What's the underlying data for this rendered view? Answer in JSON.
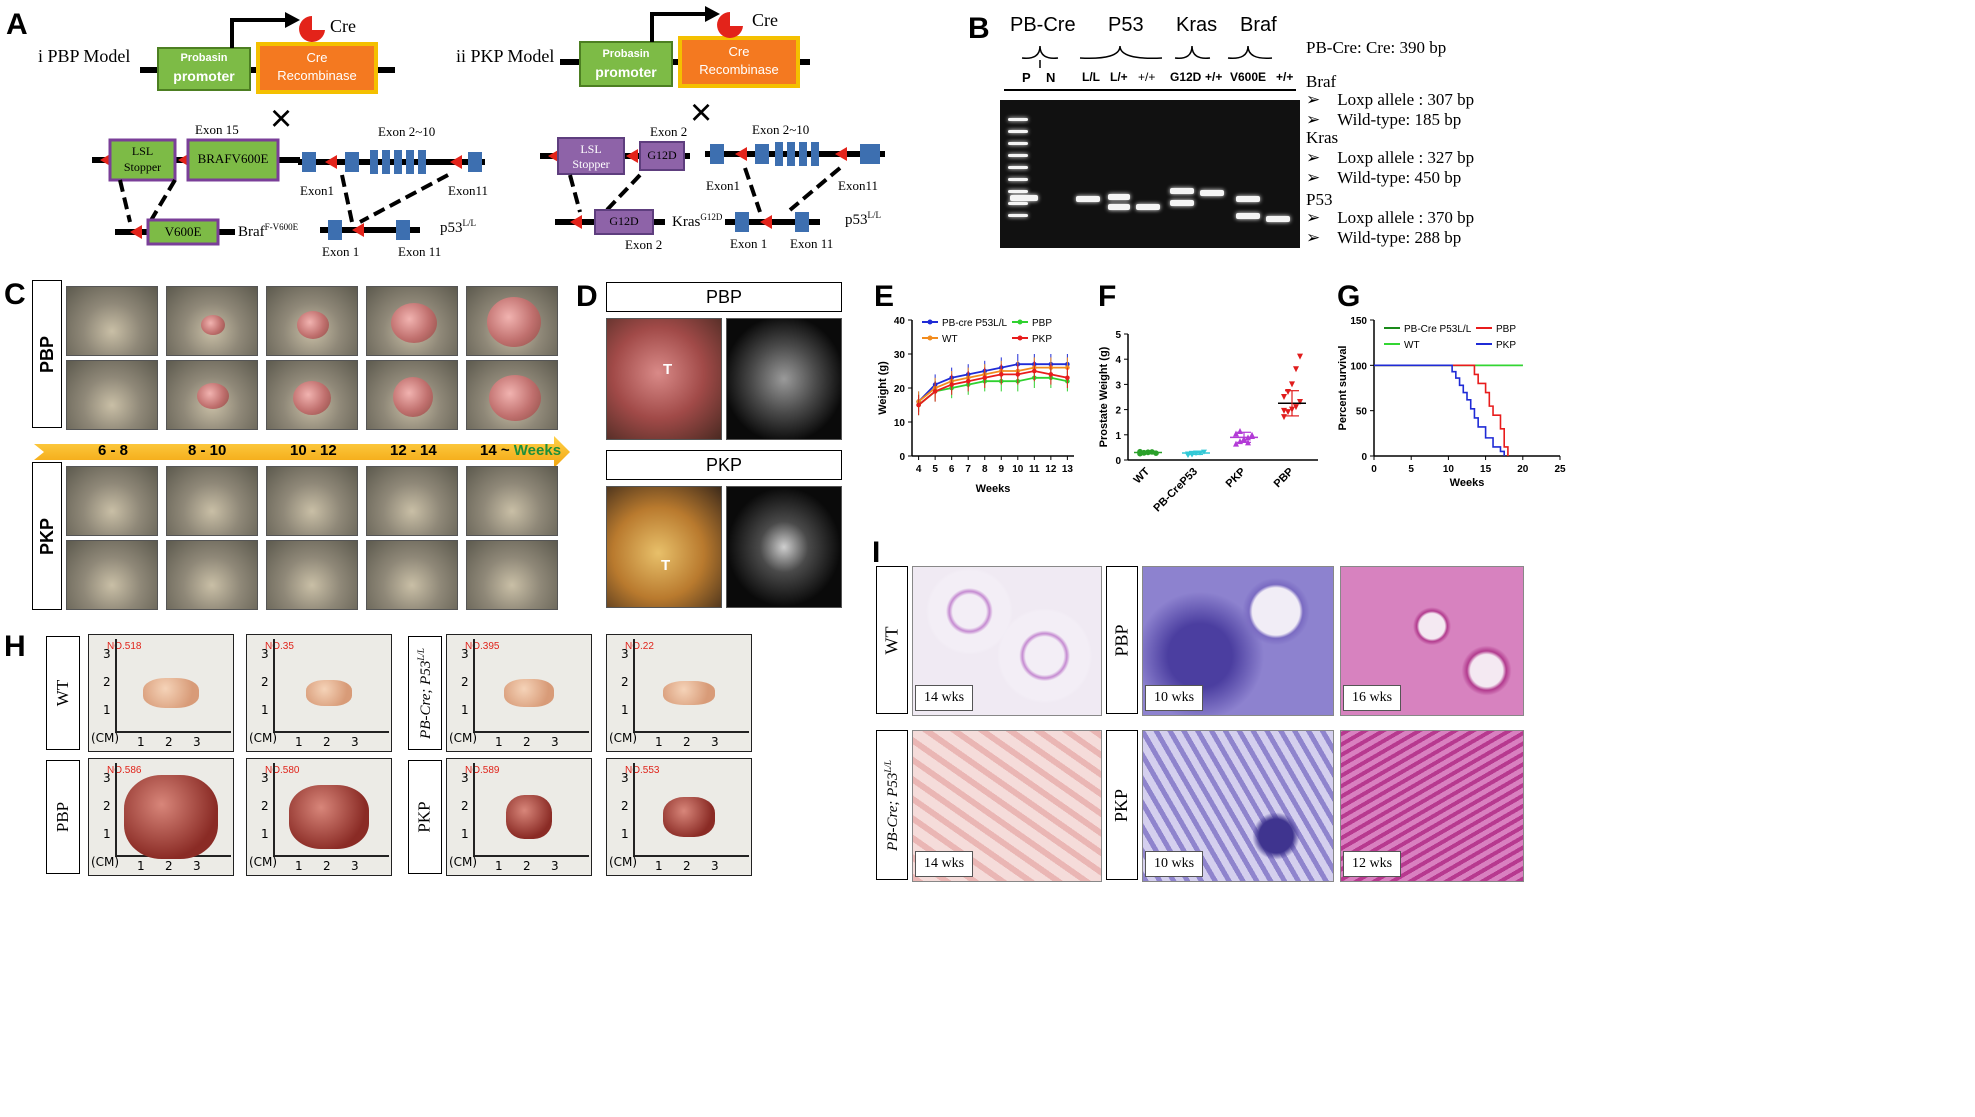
{
  "panels": {
    "A": "A",
    "B": "B",
    "C": "C",
    "D": "D",
    "E": "E",
    "F": "F",
    "G": "G",
    "H": "H",
    "I": "I"
  },
  "panelA": {
    "i_title": "i  PBP Model",
    "ii_title": "ii  PKP Model",
    "cre": "Cre",
    "probasin": "Probasin",
    "promoter": "promoter",
    "cre_box": "Cre",
    "recombinase": "Recombinase",
    "lsl": "LSL",
    "stopper": "Stopper",
    "braf_box": "BRAFV600E",
    "exon15": "Exon 15",
    "v600e": "V600E",
    "braf_allele": "Braf",
    "braf_sup": "F-V600E",
    "g12d": "G12D",
    "exon2": "Exon 2",
    "kras_allele": "Kras",
    "kras_sup": "G12D",
    "exon2_10": "Exon 2~10",
    "exon1": "Exon1",
    "exon11": "Exon11",
    "exon_1": "Exon 1",
    "exon_11": "Exon 11",
    "p53": "p53",
    "p53_sup": "L/L",
    "cross": "×"
  },
  "panelB": {
    "groups": [
      "PB-Cre",
      "P53",
      "Kras",
      "Braf"
    ],
    "lanes": [
      "P",
      "N",
      "L/L",
      "L/+",
      "+/+",
      "G12D",
      "+/+",
      "V600E",
      "+/+"
    ],
    "legend": {
      "pbcre": "PB-Cre:  Cre: 390 bp",
      "braf": "Braf",
      "braf_loxp": "Loxp allele : 307 bp",
      "braf_wt": "Wild-type: 185 bp",
      "kras": "Kras",
      "kras_loxp": "Loxp allele : 327 bp",
      "kras_wt": "Wild-type: 450 bp",
      "p53": "P53",
      "p53_loxp": "Loxp allele : 370 bp",
      "p53_wt": "Wild-type: 288 bp",
      "arrow": "➢"
    }
  },
  "panelC": {
    "row1": "PBP",
    "row2": "PKP",
    "weeks": [
      "6 - 8",
      "8 - 10",
      "10 - 12",
      "12 - 14",
      "14 ~"
    ],
    "weeks_word": "Weeks"
  },
  "panelD": {
    "top": "PBP",
    "bottom": "PKP",
    "t": "T"
  },
  "chart_data": [
    {
      "panel": "E",
      "type": "line",
      "xlabel": "Weeks",
      "ylabel": "Weight (g)",
      "x": [
        4,
        5,
        6,
        7,
        8,
        9,
        10,
        11,
        12,
        13
      ],
      "ylim": [
        0,
        40
      ],
      "yticks": [
        0,
        10,
        20,
        30,
        40
      ],
      "series": [
        {
          "name": "PB-cre P53L/L",
          "color": "#1f2bd6",
          "values": [
            16,
            21,
            23,
            24,
            25,
            26,
            27,
            27,
            27,
            27
          ]
        },
        {
          "name": "WT",
          "color": "#f28c1e",
          "values": [
            16,
            20,
            22,
            23,
            24,
            25,
            25,
            26,
            26,
            26
          ]
        },
        {
          "name": "PBP",
          "color": "#2fd12f",
          "values": [
            15,
            19,
            20,
            21,
            22,
            22,
            22,
            23,
            23,
            22
          ]
        },
        {
          "name": "PKP",
          "color": "#e81c1c",
          "values": [
            15,
            19,
            21,
            22,
            23,
            24,
            24,
            25,
            24,
            23
          ]
        }
      ]
    },
    {
      "panel": "F",
      "type": "scatter",
      "xlabel": "",
      "ylabel": "Prostate Weight (g)",
      "categories": [
        "WT",
        "PB-CreP53",
        "PKP",
        "PBP"
      ],
      "ylim": [
        0,
        5
      ],
      "yticks": [
        0,
        1,
        2,
        3,
        4,
        5
      ],
      "means": [
        0.3,
        0.28,
        0.9,
        2.25
      ],
      "sd": [
        0.05,
        0.06,
        0.2,
        0.5
      ],
      "colors": [
        "#2aa02a",
        "#33c9d6",
        "#b23ad6",
        "#e01c1c"
      ],
      "points": [
        [
          0.25,
          0.28,
          0.3,
          0.32,
          0.27,
          0.33,
          0.29,
          0.31
        ],
        [
          0.2,
          0.25,
          0.28,
          0.3,
          0.33,
          0.26,
          0.22,
          0.3
        ],
        [
          0.65,
          0.75,
          0.85,
          0.9,
          0.95,
          1.05,
          1.15,
          0.8,
          0.7,
          1.0
        ],
        [
          1.7,
          1.9,
          2.0,
          2.1,
          2.3,
          2.5,
          2.7,
          3.0,
          3.6,
          4.1,
          1.95
        ]
      ]
    },
    {
      "panel": "G",
      "type": "line",
      "xlabel": "Weeks",
      "ylabel": "Percent survival",
      "xlim": [
        0,
        25
      ],
      "xticks": [
        0,
        5,
        10,
        15,
        20,
        25
      ],
      "ylim": [
        0,
        150
      ],
      "yticks": [
        0,
        50,
        100,
        150
      ],
      "series": [
        {
          "name": "PB-Cre P53L/L",
          "color": "#1a8a1a",
          "x": [
            0,
            20
          ],
          "y": [
            100,
            100
          ]
        },
        {
          "name": "WT",
          "color": "#33d633",
          "x": [
            0,
            20
          ],
          "y": [
            100,
            100
          ]
        },
        {
          "name": "PBP",
          "color": "#e81c1c",
          "x": [
            0,
            13,
            13.5,
            14,
            15,
            15.5,
            16,
            17,
            17.5,
            18
          ],
          "y": [
            100,
            100,
            90,
            80,
            70,
            55,
            45,
            30,
            10,
            0
          ]
        },
        {
          "name": "PKP",
          "color": "#1f2bd6",
          "x": [
            0,
            10,
            10.5,
            11,
            11.5,
            12,
            12.5,
            13,
            13.5,
            14,
            15,
            16,
            17,
            17.5
          ],
          "y": [
            100,
            100,
            93,
            86,
            78,
            70,
            62,
            52,
            42,
            32,
            20,
            10,
            5,
            0
          ]
        }
      ]
    }
  ],
  "panelH": {
    "wt": "WT",
    "pbcre": "PB-Cre; P53",
    "pbcre_sup": "L/L",
    "pbp": "PBP",
    "pkp": "PKP",
    "ids": [
      "NO.518",
      "NO.35",
      "NO.395",
      "NO.22",
      "NO.586",
      "NO.580",
      "NO.589",
      "NO.553"
    ],
    "cm": "(CM)",
    "ticks": [
      "1",
      "2",
      "3"
    ]
  },
  "panelI": {
    "wt": "WT",
    "pbcre": "PB-Cre; P53",
    "pbcre_sup": "L/L",
    "pbp": "PBP",
    "pkp": "PKP",
    "wks": [
      "14 wks",
      "10 wks",
      "16 wks",
      "14 wks",
      "10 wks",
      "12 wks"
    ]
  }
}
